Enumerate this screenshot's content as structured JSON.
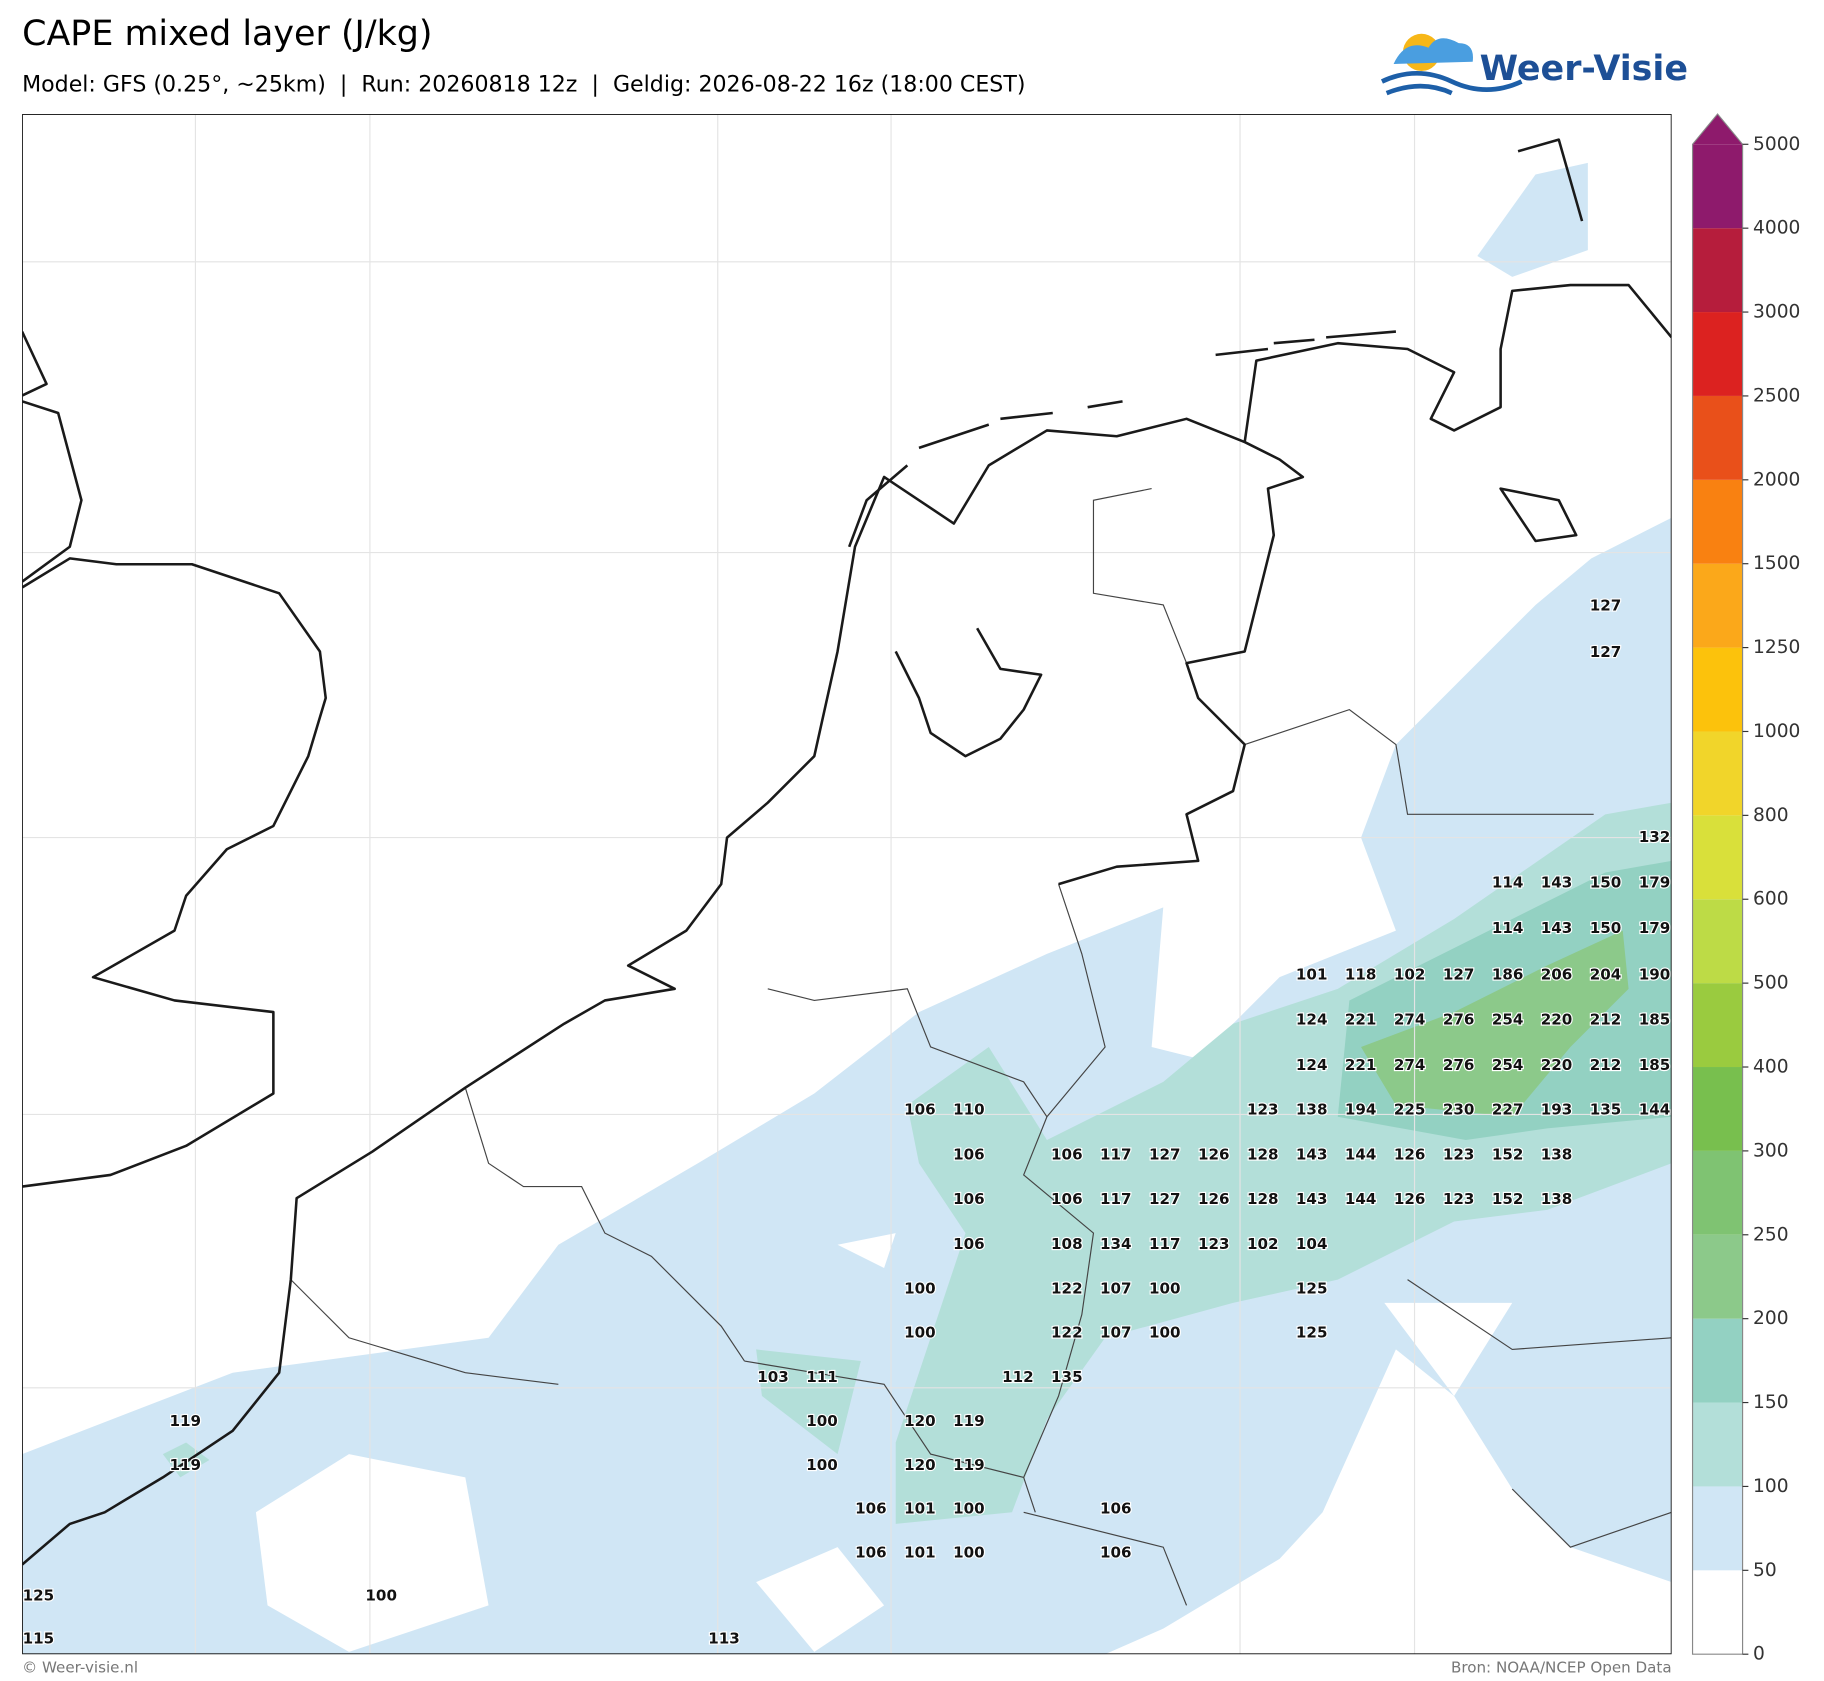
{
  "header": {
    "title": "CAPE mixed layer (J/kg)",
    "subtitle": "Model: GFS (0.25°, ~25km)  |  Run: 20260818 12z  |  Geldig: 2026-08-22 16z (18:00 CEST)",
    "logo": "Weer-Visie"
  },
  "colorbar": {
    "ticks": [
      0,
      50,
      100,
      150,
      200,
      250,
      300,
      400,
      500,
      600,
      800,
      1000,
      1250,
      1500,
      2000,
      2500,
      3000,
      4000,
      5000
    ],
    "colors": [
      "#ffffff",
      "#d0e6f5",
      "#b3dfd9",
      "#93d1c2",
      "#8cc98a",
      "#7fc372",
      "#78bf4e",
      "#9acb3f",
      "#bddb46",
      "#d9e03a",
      "#f1d52a",
      "#fcc20c",
      "#fba81a",
      "#f98111",
      "#e9501a",
      "#dc2220",
      "#b61d3c",
      "#8e1a6c"
    ],
    "extend": "max"
  },
  "map": {
    "value_labels": [
      127,
      127,
      132,
      114,
      143,
      150,
      179,
      114,
      143,
      150,
      179,
      101,
      118,
      102,
      127,
      186,
      206,
      204,
      190,
      124,
      221,
      274,
      276,
      254,
      220,
      212,
      185,
      124,
      221,
      274,
      276,
      254,
      220,
      212,
      185,
      106,
      110,
      123,
      138,
      194,
      225,
      230,
      227,
      193,
      135,
      144,
      106,
      106,
      117,
      127,
      126,
      128,
      143,
      144,
      126,
      123,
      152,
      138,
      106,
      106,
      117,
      127,
      126,
      128,
      143,
      144,
      126,
      123,
      152,
      138,
      106,
      108,
      134,
      117,
      123,
      102,
      104,
      100,
      122,
      107,
      100,
      125,
      100,
      122,
      107,
      100,
      125,
      103,
      111,
      112,
      135,
      119,
      100,
      120,
      119,
      119,
      100,
      120,
      119,
      106,
      101,
      100,
      106,
      106,
      101,
      100,
      106,
      125,
      100,
      115,
      113
    ]
  },
  "footer": {
    "left": "© Weer-visie.nl",
    "right": "Bron: NOAA/NCEP Open Data"
  }
}
